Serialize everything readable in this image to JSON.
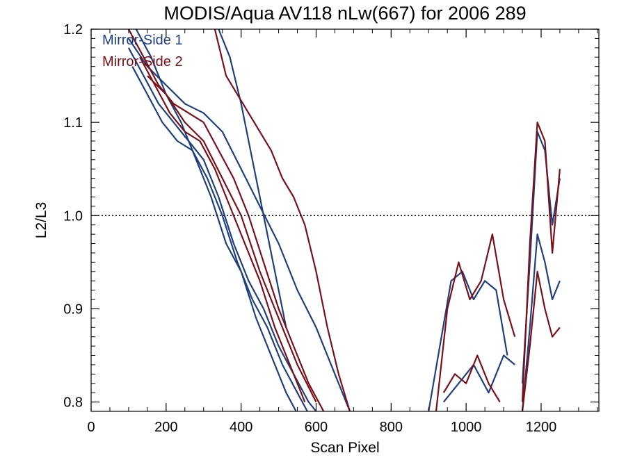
{
  "chart_data": {
    "type": "line",
    "title": "MODIS/Aqua AV118 nLw(667) for 2006 289",
    "xlabel": "Scan Pixel",
    "ylabel": "L2/L3",
    "xlim": [
      0,
      1354
    ],
    "ylim": [
      0.79,
      1.2
    ],
    "x_ticks": [
      0,
      200,
      400,
      600,
      800,
      1000,
      1200
    ],
    "y_ticks": [
      0.8,
      0.9,
      1.0,
      1.1,
      1.2
    ],
    "x_tick_labels": [
      "0",
      "200",
      "400",
      "600",
      "800",
      "1000",
      "1200"
    ],
    "y_tick_labels": [
      "0.8",
      "0.9",
      "1.0",
      "1.1",
      "1.2"
    ],
    "reference_line": {
      "y": 1.0,
      "style": "dotted"
    },
    "legend_position": "top-left",
    "colors": {
      "mirror_side_1": "#1f3f7f",
      "mirror_side_2": "#7a1018"
    },
    "series": [
      {
        "name": "Mirror-Side 1",
        "color": "#1f3f7f",
        "lines": [
          {
            "x": [
              100,
              140,
              180,
              220,
              260,
              300,
              340,
              380,
              420,
              460,
              500,
              540,
              580,
              620
            ],
            "y": [
              1.18,
              1.15,
              1.12,
              1.1,
              1.08,
              1.06,
              1.02,
              0.97,
              0.93,
              0.9,
              0.86,
              0.83,
              0.8,
              0.78
            ]
          },
          {
            "x": [
              110,
              150,
              190,
              230,
              270,
              310,
              350,
              390,
              430,
              470,
              510,
              550,
              590
            ],
            "y": [
              1.16,
              1.13,
              1.1,
              1.08,
              1.07,
              1.04,
              1.0,
              0.95,
              0.91,
              0.88,
              0.84,
              0.81,
              0.78
            ]
          },
          {
            "x": [
              120,
              160,
              200,
              240,
              280,
              320,
              360,
              400,
              440,
              480,
              520,
              560
            ],
            "y": [
              1.2,
              1.17,
              1.13,
              1.1,
              1.06,
              1.02,
              0.97,
              0.94,
              0.89,
              0.85,
              0.81,
              0.78
            ]
          },
          {
            "x": [
              100,
              150,
              200,
              250,
              300,
              350,
              400,
              450,
              500,
              550,
              600,
              650,
              690
            ],
            "y": [
              1.19,
              1.16,
              1.14,
              1.12,
              1.11,
              1.09,
              1.05,
              1.01,
              0.97,
              0.92,
              0.88,
              0.83,
              0.79
            ]
          },
          {
            "x": [
              340,
              370,
              400,
              430,
              460,
              490,
              520
            ],
            "y": [
              1.2,
              1.17,
              1.12,
              1.06,
              1.0,
              0.94,
              0.88
            ]
          },
          {
            "x": [
              900,
              930,
              960,
              990,
              1020,
              1050,
              1080,
              1110
            ],
            "y": [
              0.79,
              0.86,
              0.93,
              0.94,
              0.91,
              0.93,
              0.92,
              0.85
            ]
          },
          {
            "x": [
              940,
              980,
              1020,
              1060,
              1100,
              1130
            ],
            "y": [
              0.8,
              0.82,
              0.84,
              0.81,
              0.85,
              0.84
            ]
          },
          {
            "x": [
              1150,
              1170,
              1190,
              1210,
              1230,
              1250
            ],
            "y": [
              0.82,
              0.95,
              1.09,
              1.07,
              0.99,
              1.04
            ]
          },
          {
            "x": [
              1150,
              1170,
              1190,
              1210,
              1230,
              1250
            ],
            "y": [
              0.79,
              0.88,
              0.98,
              0.95,
              0.91,
              0.93
            ]
          }
        ]
      },
      {
        "name": "Mirror-Side 2",
        "color": "#7a1018",
        "lines": [
          {
            "x": [
              100,
              140,
              180,
              220,
              260,
              300,
              340,
              380,
              420,
              460,
              500,
              540,
              580,
              620,
              650
            ],
            "y": [
              1.2,
              1.17,
              1.14,
              1.12,
              1.11,
              1.1,
              1.07,
              1.04,
              1.0,
              0.95,
              0.9,
              0.86,
              0.82,
              0.79,
              0.78
            ]
          },
          {
            "x": [
              130,
              170,
              210,
              250,
              290,
              330,
              370,
              410,
              450,
              490,
              530,
              570
            ],
            "y": [
              1.17,
              1.14,
              1.11,
              1.09,
              1.08,
              1.05,
              1.01,
              0.97,
              0.93,
              0.88,
              0.84,
              0.8
            ]
          },
          {
            "x": [
              330,
              360,
              390,
              420,
              450,
              480,
              510,
              540,
              570,
              600,
              630,
              660,
              690
            ],
            "y": [
              1.2,
              1.15,
              1.13,
              1.11,
              1.09,
              1.07,
              1.04,
              1.02,
              0.99,
              0.94,
              0.88,
              0.83,
              0.79
            ]
          },
          {
            "x": [
              150,
              200,
              250,
              300,
              350,
              400,
              450,
              500,
              550,
              600
            ],
            "y": [
              1.15,
              1.13,
              1.1,
              1.08,
              1.04,
              1.0,
              0.94,
              0.89,
              0.84,
              0.8
            ]
          },
          {
            "x": [
              920,
              950,
              980,
              1010,
              1040,
              1070,
              1100,
              1130
            ],
            "y": [
              0.79,
              0.9,
              0.95,
              0.91,
              0.93,
              0.98,
              0.91,
              0.87
            ]
          },
          {
            "x": [
              940,
              970,
              1000,
              1030,
              1060,
              1090
            ],
            "y": [
              0.81,
              0.83,
              0.82,
              0.85,
              0.82,
              0.8
            ]
          },
          {
            "x": [
              1150,
              1170,
              1190,
              1210,
              1230,
              1250
            ],
            "y": [
              0.8,
              0.97,
              1.1,
              1.08,
              0.96,
              1.05
            ]
          },
          {
            "x": [
              1150,
              1170,
              1190,
              1210,
              1230,
              1250
            ],
            "y": [
              0.79,
              0.86,
              0.94,
              0.9,
              0.87,
              0.88
            ]
          }
        ]
      }
    ]
  }
}
